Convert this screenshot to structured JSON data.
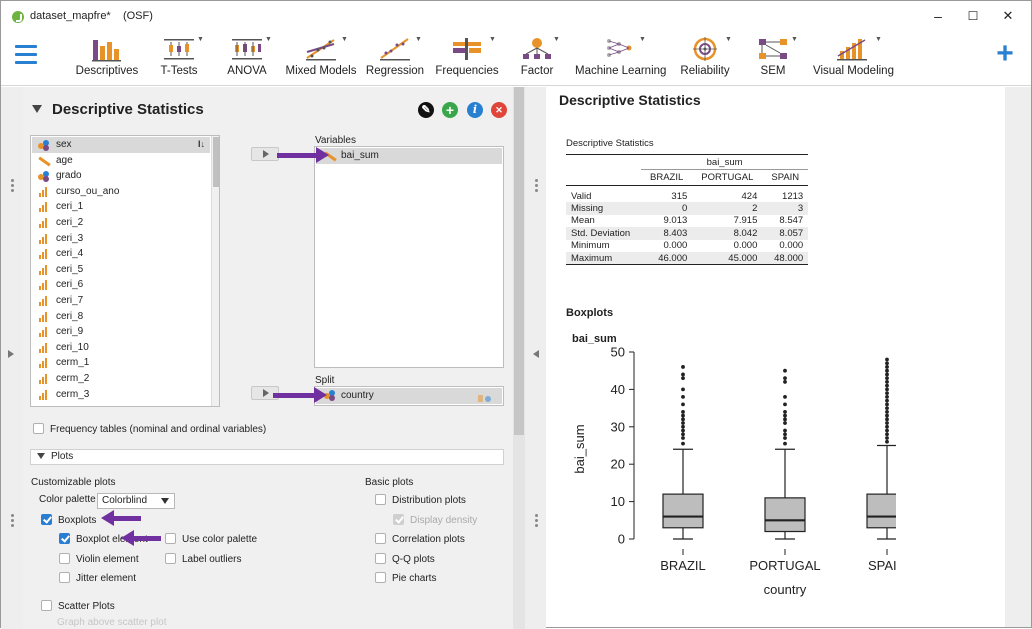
{
  "window": {
    "title": "dataset_mapfre*",
    "subtitle": "(OSF)",
    "controls": {
      "minimize": "–",
      "maximize": "☐",
      "close": "✕"
    }
  },
  "ribbon": {
    "menu_icon": "hamburger-menu-icon",
    "items": [
      {
        "label": "Descriptives",
        "icon": "descriptives-icon",
        "dropdown": false
      },
      {
        "label": "T-Tests",
        "icon": "t-tests-icon",
        "dropdown": true
      },
      {
        "label": "ANOVA",
        "icon": "anova-icon",
        "dropdown": true
      },
      {
        "label": "Mixed Models",
        "icon": "mixed-models-icon",
        "dropdown": true
      },
      {
        "label": "Regression",
        "icon": "regression-icon",
        "dropdown": true
      },
      {
        "label": "Frequencies",
        "icon": "frequencies-icon",
        "dropdown": true
      },
      {
        "label": "Factor",
        "icon": "factor-icon",
        "dropdown": true
      },
      {
        "label": "Machine Learning",
        "icon": "machine-learning-icon",
        "dropdown": true
      },
      {
        "label": "Reliability",
        "icon": "reliability-icon",
        "dropdown": true
      },
      {
        "label": "SEM",
        "icon": "sem-icon",
        "dropdown": true
      },
      {
        "label": "Visual Modeling",
        "icon": "visual-modeling-icon",
        "dropdown": true
      }
    ],
    "plus": "+",
    "accent": "#2a80d0"
  },
  "analysis": {
    "title": "Descriptive Statistics",
    "header_buttons": {
      "edit": {
        "icon": "pencil-icon",
        "color": "#111111",
        "glyph": "✎"
      },
      "add": {
        "icon": "add-icon",
        "color": "#3aa64c",
        "glyph": "+"
      },
      "info": {
        "icon": "info-icon",
        "color": "#2a80d0",
        "glyph": "i"
      },
      "close": {
        "icon": "close-icon",
        "color": "#e0453a",
        "glyph": "✕"
      }
    },
    "variables": [
      {
        "name": "sex",
        "type": "nominal",
        "selected": true
      },
      {
        "name": "age",
        "type": "scale"
      },
      {
        "name": "grado",
        "type": "nominal"
      },
      {
        "name": "curso_ou_ano",
        "type": "ordinal"
      },
      {
        "name": "ceri_1",
        "type": "ordinal"
      },
      {
        "name": "ceri_2",
        "type": "ordinal"
      },
      {
        "name": "ceri_3",
        "type": "ordinal"
      },
      {
        "name": "ceri_4",
        "type": "ordinal"
      },
      {
        "name": "ceri_5",
        "type": "ordinal"
      },
      {
        "name": "ceri_6",
        "type": "ordinal"
      },
      {
        "name": "ceri_7",
        "type": "ordinal"
      },
      {
        "name": "ceri_8",
        "type": "ordinal"
      },
      {
        "name": "ceri_9",
        "type": "ordinal"
      },
      {
        "name": "ceri_10",
        "type": "ordinal"
      },
      {
        "name": "cerm_1",
        "type": "ordinal"
      },
      {
        "name": "cerm_2",
        "type": "ordinal"
      },
      {
        "name": "cerm_3",
        "type": "ordinal"
      }
    ],
    "variables_box": {
      "label": "Variables",
      "item": "bai_sum"
    },
    "split_box": {
      "label": "Split",
      "item": "country"
    },
    "frequency_tables": {
      "label": "Frequency tables (nominal and ordinal variables)",
      "checked": false
    },
    "plots_section": "Plots",
    "customizable_plots": {
      "heading": "Customizable plots",
      "color_palette_label": "Color palette",
      "color_palette_value": "Colorblind",
      "boxplots": {
        "label": "Boxplots",
        "checked": true
      },
      "boxplot_element": {
        "label": "Boxplot element",
        "checked": true
      },
      "use_color_palette": {
        "label": "Use color palette",
        "checked": false
      },
      "violin_element": {
        "label": "Violin element",
        "checked": false
      },
      "label_outliers": {
        "label": "Label outliers",
        "checked": false
      },
      "jitter_element": {
        "label": "Jitter element",
        "checked": false
      },
      "scatter_plots": {
        "label": "Scatter Plots",
        "checked": false
      },
      "graph_above_scatter": {
        "label": "Graph above scatter plot"
      }
    },
    "basic_plots": {
      "heading": "Basic plots",
      "distribution_plots": {
        "label": "Distribution plots",
        "checked": false
      },
      "display_density": {
        "label": "Display density",
        "checked": true,
        "disabled": true
      },
      "correlation_plots": {
        "label": "Correlation plots",
        "checked": false
      },
      "qq_plots": {
        "label": "Q-Q plots",
        "checked": false
      },
      "pie_charts": {
        "label": "Pie charts",
        "checked": false
      }
    },
    "annotation_arrow_color": "#7030a0"
  },
  "results": {
    "title": "Descriptive Statistics",
    "table": {
      "title": "Descriptive Statistics",
      "variable": "bai_sum",
      "columns": [
        "BRAZIL",
        "PORTUGAL",
        "SPAIN"
      ],
      "rows": [
        {
          "label": "Valid",
          "values": [
            "315",
            "424",
            "1213"
          ]
        },
        {
          "label": "Missing",
          "values": [
            "0",
            "2",
            "3"
          ]
        },
        {
          "label": "Mean",
          "values": [
            "9.013",
            "7.915",
            "8.547"
          ]
        },
        {
          "label": "Std. Deviation",
          "values": [
            "8.403",
            "8.042",
            "8.057"
          ]
        },
        {
          "label": "Minimum",
          "values": [
            "0.000",
            "0.000",
            "0.000"
          ]
        },
        {
          "label": "Maximum",
          "values": [
            "46.000",
            "45.000",
            "48.000"
          ]
        }
      ]
    },
    "boxplots_title": "Boxplots",
    "plot_variable": "bai_sum",
    "chart_data": {
      "type": "boxplot",
      "title": "bai_sum",
      "xlabel": "country",
      "ylabel": "bai_sum",
      "ylim": [
        0,
        50
      ],
      "yticks": [
        0,
        10,
        20,
        30,
        40,
        50
      ],
      "categories": [
        "BRAZIL",
        "PORTUGAL",
        "SPAIN"
      ],
      "boxes": [
        {
          "name": "BRAZIL",
          "whisker_low": 0,
          "q1": 3,
          "median": 6,
          "q3": 12,
          "whisker_high": 24,
          "outliers": [
            25.5,
            27,
            28,
            29,
            30,
            31,
            32,
            33,
            34,
            36,
            38,
            40,
            43,
            44,
            46
          ]
        },
        {
          "name": "PORTUGAL",
          "whisker_low": 0,
          "q1": 2,
          "median": 5,
          "q3": 11,
          "whisker_high": 24,
          "outliers": [
            25.5,
            27,
            28,
            29,
            31,
            32,
            33,
            34,
            36,
            38,
            42,
            43,
            45
          ]
        },
        {
          "name": "SPAIN",
          "whisker_low": 0,
          "q1": 3,
          "median": 6,
          "q3": 12,
          "whisker_high": 25,
          "outliers": [
            26,
            27,
            28,
            29,
            30,
            31,
            32,
            33,
            34,
            35,
            36,
            37,
            38,
            39,
            40,
            41,
            42,
            43,
            44,
            45,
            46,
            47,
            48
          ]
        }
      ],
      "box_fill": "#bdbdbd",
      "grid": false
    }
  }
}
